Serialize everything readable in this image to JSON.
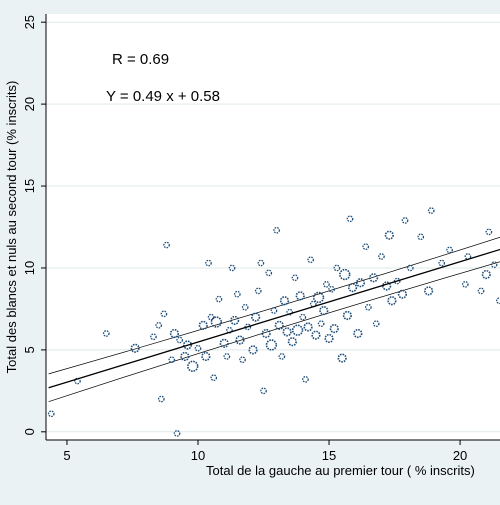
{
  "chart_data": {
    "type": "scatter",
    "title": "",
    "xlabel": "Total de la gauche au premier tour ( % inscrits)",
    "ylabel": "Total des blancs et nuls au second tour (% inscrits)",
    "xlim": [
      4.2,
      21.6
    ],
    "ylim": [
      -0.5,
      25.5
    ],
    "xticks": [
      5,
      10,
      15,
      20
    ],
    "yticks": [
      0,
      5,
      10,
      15,
      20,
      25
    ],
    "grid": "horizontal",
    "annotations": [
      "R = 0.69",
      "Y = 0.49 x + 0.58"
    ],
    "regression": {
      "slope": 0.49,
      "intercept": 0.58
    },
    "confidence_band_offset": [
      0.85,
      0.55,
      0.75
    ],
    "colors": {
      "marker": "#1f4e79",
      "line": "#000000",
      "grid": "#dfe8ea",
      "plot_bg": "#ffffff",
      "outer_bg": "#eaf2f3"
    },
    "points": [
      {
        "x": 4.4,
        "y": 1.1,
        "size": 1
      },
      {
        "x": 5.4,
        "y": 3.1,
        "size": 1
      },
      {
        "x": 6.5,
        "y": 6.0,
        "size": 1
      },
      {
        "x": 7.6,
        "y": 5.1,
        "size": 2
      },
      {
        "x": 8.3,
        "y": 5.8,
        "size": 1
      },
      {
        "x": 8.5,
        "y": 6.5,
        "size": 1
      },
      {
        "x": 8.7,
        "y": 7.2,
        "size": 1
      },
      {
        "x": 8.8,
        "y": 11.4,
        "size": 1
      },
      {
        "x": 8.6,
        "y": 2.0,
        "size": 1
      },
      {
        "x": 9.2,
        "y": -0.1,
        "size": 1
      },
      {
        "x": 9.0,
        "y": 4.4,
        "size": 1
      },
      {
        "x": 9.1,
        "y": 6.0,
        "size": 2
      },
      {
        "x": 9.3,
        "y": 5.6,
        "size": 1
      },
      {
        "x": 9.5,
        "y": 4.6,
        "size": 2
      },
      {
        "x": 9.6,
        "y": 5.3,
        "size": 2
      },
      {
        "x": 9.8,
        "y": 4.0,
        "size": 3
      },
      {
        "x": 10.0,
        "y": 5.1,
        "size": 1
      },
      {
        "x": 10.2,
        "y": 6.5,
        "size": 2
      },
      {
        "x": 10.3,
        "y": 4.6,
        "size": 2
      },
      {
        "x": 10.4,
        "y": 10.3,
        "size": 1
      },
      {
        "x": 10.5,
        "y": 7.0,
        "size": 1
      },
      {
        "x": 10.6,
        "y": 3.3,
        "size": 1
      },
      {
        "x": 10.7,
        "y": 6.7,
        "size": 3
      },
      {
        "x": 10.8,
        "y": 8.1,
        "size": 1
      },
      {
        "x": 11.0,
        "y": 5.4,
        "size": 2
      },
      {
        "x": 11.1,
        "y": 4.6,
        "size": 1
      },
      {
        "x": 11.2,
        "y": 6.2,
        "size": 1
      },
      {
        "x": 11.3,
        "y": 10.0,
        "size": 1
      },
      {
        "x": 11.4,
        "y": 6.8,
        "size": 2
      },
      {
        "x": 11.5,
        "y": 8.4,
        "size": 1
      },
      {
        "x": 11.6,
        "y": 5.6,
        "size": 2
      },
      {
        "x": 11.7,
        "y": 4.4,
        "size": 1
      },
      {
        "x": 11.8,
        "y": 7.6,
        "size": 1
      },
      {
        "x": 11.9,
        "y": 6.4,
        "size": 1
      },
      {
        "x": 12.1,
        "y": 5.0,
        "size": 2
      },
      {
        "x": 12.2,
        "y": 7.0,
        "size": 2
      },
      {
        "x": 12.3,
        "y": 8.6,
        "size": 1
      },
      {
        "x": 12.4,
        "y": 10.3,
        "size": 1
      },
      {
        "x": 12.5,
        "y": 2.5,
        "size": 1
      },
      {
        "x": 12.6,
        "y": 6.0,
        "size": 2
      },
      {
        "x": 12.7,
        "y": 9.7,
        "size": 1
      },
      {
        "x": 12.8,
        "y": 5.3,
        "size": 3
      },
      {
        "x": 12.9,
        "y": 7.4,
        "size": 1
      },
      {
        "x": 13.0,
        "y": 12.3,
        "size": 1
      },
      {
        "x": 13.1,
        "y": 6.5,
        "size": 2
      },
      {
        "x": 13.2,
        "y": 4.6,
        "size": 1
      },
      {
        "x": 13.3,
        "y": 8.0,
        "size": 2
      },
      {
        "x": 13.4,
        "y": 6.1,
        "size": 2
      },
      {
        "x": 13.5,
        "y": 7.3,
        "size": 1
      },
      {
        "x": 13.6,
        "y": 5.5,
        "size": 2
      },
      {
        "x": 13.7,
        "y": 9.4,
        "size": 1
      },
      {
        "x": 13.8,
        "y": 6.2,
        "size": 3
      },
      {
        "x": 13.9,
        "y": 8.3,
        "size": 2
      },
      {
        "x": 14.0,
        "y": 7.0,
        "size": 1
      },
      {
        "x": 14.1,
        "y": 3.2,
        "size": 1
      },
      {
        "x": 14.2,
        "y": 6.4,
        "size": 2
      },
      {
        "x": 14.3,
        "y": 10.5,
        "size": 1
      },
      {
        "x": 14.4,
        "y": 7.8,
        "size": 1
      },
      {
        "x": 14.5,
        "y": 5.9,
        "size": 2
      },
      {
        "x": 14.6,
        "y": 8.2,
        "size": 3
      },
      {
        "x": 14.7,
        "y": 6.6,
        "size": 1
      },
      {
        "x": 14.8,
        "y": 7.4,
        "size": 2
      },
      {
        "x": 14.9,
        "y": 9.0,
        "size": 1
      },
      {
        "x": 15.0,
        "y": 5.7,
        "size": 2
      },
      {
        "x": 15.1,
        "y": 8.7,
        "size": 1
      },
      {
        "x": 15.2,
        "y": 6.3,
        "size": 2
      },
      {
        "x": 15.3,
        "y": 10.0,
        "size": 1
      },
      {
        "x": 15.5,
        "y": 4.5,
        "size": 2
      },
      {
        "x": 15.6,
        "y": 9.6,
        "size": 3
      },
      {
        "x": 15.7,
        "y": 7.1,
        "size": 2
      },
      {
        "x": 15.8,
        "y": 13.0,
        "size": 1
      },
      {
        "x": 15.9,
        "y": 8.8,
        "size": 2
      },
      {
        "x": 16.1,
        "y": 6.0,
        "size": 2
      },
      {
        "x": 16.2,
        "y": 9.1,
        "size": 2
      },
      {
        "x": 16.4,
        "y": 11.3,
        "size": 1
      },
      {
        "x": 16.5,
        "y": 7.6,
        "size": 1
      },
      {
        "x": 16.7,
        "y": 9.4,
        "size": 2
      },
      {
        "x": 16.8,
        "y": 6.6,
        "size": 1
      },
      {
        "x": 17.0,
        "y": 10.7,
        "size": 1
      },
      {
        "x": 17.2,
        "y": 8.9,
        "size": 2
      },
      {
        "x": 17.3,
        "y": 12.0,
        "size": 2
      },
      {
        "x": 17.4,
        "y": 8.0,
        "size": 2
      },
      {
        "x": 17.6,
        "y": 9.2,
        "size": 1
      },
      {
        "x": 17.8,
        "y": 8.4,
        "size": 2
      },
      {
        "x": 17.9,
        "y": 12.9,
        "size": 1
      },
      {
        "x": 18.1,
        "y": 10.0,
        "size": 1
      },
      {
        "x": 18.5,
        "y": 11.9,
        "size": 1
      },
      {
        "x": 18.8,
        "y": 8.6,
        "size": 2
      },
      {
        "x": 18.9,
        "y": 13.5,
        "size": 1
      },
      {
        "x": 19.3,
        "y": 10.3,
        "size": 1
      },
      {
        "x": 19.6,
        "y": 11.1,
        "size": 1
      },
      {
        "x": 20.2,
        "y": 9.0,
        "size": 1
      },
      {
        "x": 20.3,
        "y": 10.7,
        "size": 1
      },
      {
        "x": 20.8,
        "y": 8.6,
        "size": 1
      },
      {
        "x": 21.0,
        "y": 9.6,
        "size": 2
      },
      {
        "x": 21.1,
        "y": 12.2,
        "size": 1
      },
      {
        "x": 21.3,
        "y": 10.2,
        "size": 1
      },
      {
        "x": 21.5,
        "y": 8.0,
        "size": 1
      }
    ]
  }
}
